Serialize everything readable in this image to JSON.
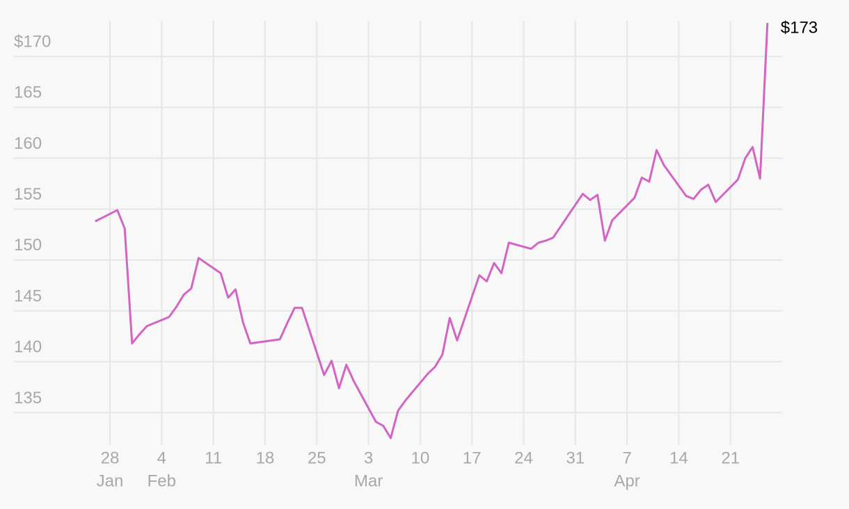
{
  "chart_data": {
    "type": "line",
    "x": [
      "Jan 26",
      "Jan 29",
      "Jan 30",
      "Jan 31",
      "Feb 1",
      "Feb 2",
      "Feb 5",
      "Feb 6",
      "Feb 7",
      "Feb 8",
      "Feb 9",
      "Feb 12",
      "Feb 13",
      "Feb 14",
      "Feb 15",
      "Feb 16",
      "Feb 20",
      "Feb 21",
      "Feb 22",
      "Feb 23",
      "Feb 26",
      "Feb 27",
      "Feb 28",
      "Feb 29",
      "Mar 1",
      "Mar 4",
      "Mar 5",
      "Mar 6",
      "Mar 7",
      "Mar 8",
      "Mar 11",
      "Mar 12",
      "Mar 13",
      "Mar 14",
      "Mar 15",
      "Mar 18",
      "Mar 19",
      "Mar 20",
      "Mar 21",
      "Mar 22",
      "Mar 25",
      "Mar 26",
      "Mar 27",
      "Mar 28",
      "Apr 1",
      "Apr 2",
      "Apr 3",
      "Apr 4",
      "Apr 5",
      "Apr 8",
      "Apr 9",
      "Apr 10",
      "Apr 11",
      "Apr 12",
      "Apr 15",
      "Apr 16",
      "Apr 17",
      "Apr 18",
      "Apr 19",
      "Apr 22",
      "Apr 23",
      "Apr 24",
      "Apr 25",
      "Apr 26"
    ],
    "series": [
      {
        "color": "#d264c4",
        "values": [
          153.8,
          154.9,
          153.1,
          141.8,
          142.7,
          143.5,
          144.4,
          145.4,
          146.6,
          147.2,
          150.2,
          148.7,
          146.3,
          147.1,
          143.9,
          141.8,
          142.2,
          143.8,
          145.3,
          145.3,
          138.7,
          140.1,
          137.4,
          139.7,
          138.1,
          134.1,
          133.7,
          132.5,
          135.2,
          136.2,
          138.8,
          139.5,
          140.7,
          144.3,
          142.1,
          148.5,
          147.9,
          149.7,
          148.7,
          151.7,
          151.1,
          151.7,
          151.9,
          152.2,
          156.5,
          155.9,
          156.4,
          151.9,
          153.9,
          156.1,
          158.1,
          157.7,
          160.8,
          159.3,
          156.3,
          156.0,
          156.9,
          157.4,
          155.7,
          157.9,
          160.0,
          161.1,
          158.0,
          173.3
        ],
        "value_labels": [
          null,
          null,
          null,
          null,
          null,
          null,
          null,
          null,
          null,
          null,
          null,
          null,
          null,
          null,
          null,
          null,
          null,
          null,
          null,
          null,
          null,
          null,
          null,
          null,
          null,
          null,
          null,
          null,
          null,
          null,
          null,
          null,
          null,
          null,
          null,
          null,
          null,
          null,
          null,
          null,
          null,
          null,
          null,
          null,
          null,
          null,
          null,
          null,
          null,
          null,
          null,
          null,
          null,
          null,
          null,
          null,
          null,
          null,
          null,
          null,
          null,
          null,
          null,
          "$173"
        ]
      }
    ],
    "xlim": [
      "Jan 15",
      "Apr 28"
    ],
    "xticks": [
      {
        "value": "Jan 28",
        "label": "28",
        "month": "Jan"
      },
      {
        "value": "Feb 4",
        "label": "4",
        "month": "Feb"
      },
      {
        "value": "Feb 11",
        "label": "11"
      },
      {
        "value": "Feb 18",
        "label": "18"
      },
      {
        "value": "Feb 25",
        "label": "25"
      },
      {
        "value": "Mar 3",
        "label": "3",
        "month": "Mar"
      },
      {
        "value": "Mar 10",
        "label": "10"
      },
      {
        "value": "Mar 17",
        "label": "17"
      },
      {
        "value": "Mar 24",
        "label": "24"
      },
      {
        "value": "Mar 31",
        "label": "31"
      },
      {
        "value": "Apr 7",
        "label": "7",
        "month": "Apr"
      },
      {
        "value": "Apr 14",
        "label": "14"
      },
      {
        "value": "Apr 21",
        "label": "21"
      }
    ],
    "ylim": [
      132.5,
      173.5
    ],
    "yticks": [
      135,
      140,
      145,
      150,
      155,
      160,
      165,
      {
        "value": 170,
        "label": "$170"
      }
    ],
    "grid": true
  }
}
